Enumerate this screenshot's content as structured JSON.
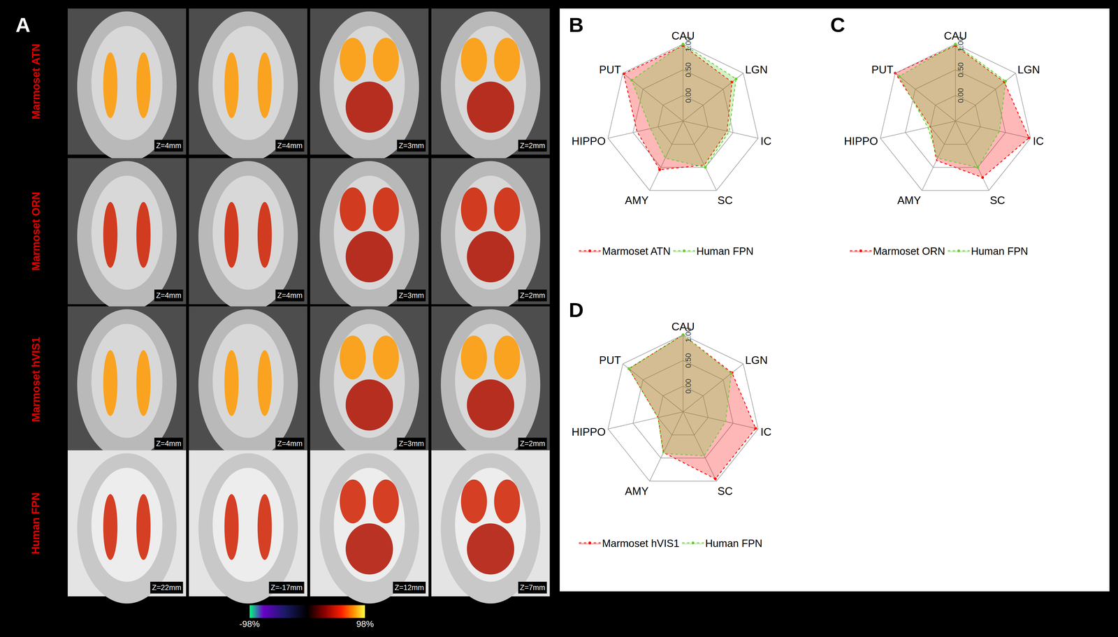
{
  "figure": {
    "panel_A": {
      "title": "A",
      "rows": [
        {
          "label": "Marmoset ATN",
          "slices": [
            "Z=4mm",
            "Z=4mm",
            "Z=3mm",
            "Z=2mm"
          ]
        },
        {
          "label": "Marmoset ORN",
          "slices": [
            "Z=4mm",
            "Z=4mm",
            "Z=3mm",
            "Z=2mm"
          ]
        },
        {
          "label": "Marmoset hVIS1",
          "slices": [
            "Z=4mm",
            "Z=4mm",
            "Z=3mm",
            "Z=2mm"
          ]
        },
        {
          "label": "Human FPN",
          "slices": [
            "Z=22mm",
            "Z=-17mm",
            "Z=12mm",
            "Z=7mm"
          ]
        }
      ],
      "colorbar": {
        "xlim": [
          -98,
          98
        ],
        "xticks": [
          {
            "value": -98,
            "label": "-98%"
          },
          {
            "value": 98,
            "label": "98%"
          }
        ]
      }
    }
  },
  "chart_data": [
    {
      "type": "radar",
      "title": "B",
      "categories": [
        "CAU",
        "LGN",
        "IC",
        "SC",
        "AMY",
        "HIPPO",
        "PUT"
      ],
      "ylim": [
        -0.5,
        1.0
      ],
      "yticks": [
        {
          "value": 0,
          "label": "0.00"
        },
        {
          "value": 0.5,
          "label": "0.50"
        },
        {
          "value": 1,
          "label": "1.00"
        }
      ],
      "grid": true,
      "legend": "bottom",
      "line_style": "dash",
      "marker": "circle",
      "series": [
        {
          "name": "Marmoset ATN",
          "color": "#ff0000",
          "values": [
            0.97,
            0.72,
            0.38,
            0.45,
            0.55,
            0.42,
            0.98
          ]
        },
        {
          "name": "Human FPN",
          "color": "#66cc33",
          "values": [
            1.0,
            0.82,
            0.42,
            0.5,
            0.3,
            0.15,
            0.78
          ]
        }
      ]
    },
    {
      "type": "radar",
      "title": "C",
      "categories": [
        "CAU",
        "LGN",
        "IC",
        "SC",
        "AMY",
        "HIPPO",
        "PUT"
      ],
      "ylim": [
        -0.5,
        1.0
      ],
      "yticks": [
        {
          "value": 0,
          "label": "0.00"
        },
        {
          "value": 0.5,
          "label": "0.50"
        },
        {
          "value": 1,
          "label": "1.00"
        }
      ],
      "grid": true,
      "legend": "bottom",
      "line_style": "dash",
      "marker": "circle",
      "series": [
        {
          "name": "Marmoset ORN",
          "color": "#ff0000",
          "values": [
            0.97,
            0.72,
            0.97,
            0.72,
            0.35,
            0.0,
            1.0
          ]
        },
        {
          "name": "Human FPN",
          "color": "#66cc33",
          "values": [
            1.0,
            0.75,
            0.38,
            0.5,
            0.3,
            0.05,
            0.9
          ]
        }
      ]
    },
    {
      "type": "radar",
      "title": "D",
      "categories": [
        "CAU",
        "LGN",
        "IC",
        "SC",
        "AMY",
        "HIPPO",
        "PUT"
      ],
      "ylim": [
        -0.5,
        1.0
      ],
      "yticks": [
        {
          "value": 0,
          "label": "0.00"
        },
        {
          "value": 0.5,
          "label": "0.50"
        },
        {
          "value": 1,
          "label": "1.00"
        }
      ],
      "grid": true,
      "legend": "bottom",
      "line_style": "dash",
      "marker": "circle",
      "series": [
        {
          "name": "Marmoset hVIS1",
          "color": "#ff0000",
          "values": [
            1.0,
            0.72,
            0.95,
            0.95,
            0.38,
            0.0,
            0.85
          ]
        },
        {
          "name": "Human FPN",
          "color": "#66cc33",
          "values": [
            1.0,
            0.7,
            0.35,
            0.45,
            0.4,
            0.0,
            0.85
          ]
        }
      ]
    }
  ]
}
